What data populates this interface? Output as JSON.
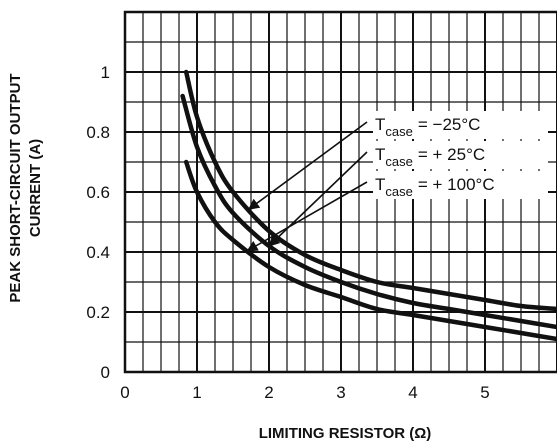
{
  "chart_data": {
    "type": "line",
    "xlabel": "LIMITING RESISTOR (Ω)",
    "ylabel_lines": [
      "PEAK SHORT-CIRCUIT OUTPUT",
      "CURRENT (A)"
    ],
    "xlim": [
      0,
      6
    ],
    "ylim": [
      0,
      1.2
    ],
    "x_ticks": [
      "0",
      "1",
      "2",
      "3",
      "4",
      "5"
    ],
    "y_ticks": [
      "0",
      "0.2",
      "0.4",
      "0.6",
      "0.8",
      "1"
    ],
    "grid": true,
    "series": [
      {
        "name": "T_case = −25°C",
        "label_main": "T",
        "label_sub": "case",
        "label_rest": "= −25°C",
        "x": [
          0.85,
          1.0,
          1.25,
          1.5,
          2.0,
          2.5,
          3.0,
          3.5,
          4.0,
          4.5,
          5.0,
          5.5,
          6.0
        ],
        "y": [
          1.0,
          0.85,
          0.7,
          0.6,
          0.47,
          0.39,
          0.34,
          0.3,
          0.28,
          0.26,
          0.24,
          0.22,
          0.21
        ]
      },
      {
        "name": "T_case = + 25°C",
        "label_main": "T",
        "label_sub": "case",
        "label_rest": "= + 25°C",
        "x": [
          0.8,
          1.0,
          1.25,
          1.5,
          2.0,
          2.5,
          3.0,
          3.5,
          4.0,
          4.5,
          5.0,
          5.5,
          6.0
        ],
        "y": [
          0.92,
          0.75,
          0.62,
          0.53,
          0.42,
          0.35,
          0.3,
          0.26,
          0.23,
          0.21,
          0.19,
          0.17,
          0.15
        ]
      },
      {
        "name": "T_case = + 100°C",
        "label_main": "T",
        "label_sub": "case",
        "label_rest": "= + 100°C",
        "x": [
          0.85,
          1.0,
          1.25,
          1.5,
          2.0,
          2.5,
          3.0,
          3.5,
          4.0,
          4.5,
          5.0,
          5.5,
          6.0
        ],
        "y": [
          0.7,
          0.6,
          0.5,
          0.44,
          0.35,
          0.29,
          0.25,
          0.21,
          0.19,
          0.17,
          0.15,
          0.13,
          0.11
        ]
      }
    ]
  }
}
